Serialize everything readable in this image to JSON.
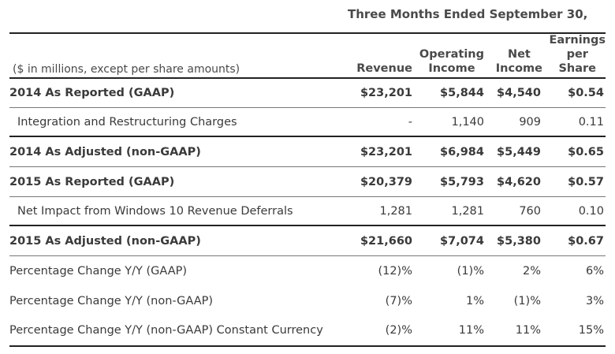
{
  "table": {
    "period_header": "Three Months Ended September 30,",
    "note": "($ in millions, except per share amounts)",
    "columns": {
      "revenue": "Revenue",
      "operating_income": "Operating\nIncome",
      "net_income": "Net\nIncome",
      "eps": "Earnings\nper\nShare"
    },
    "rows": [
      {
        "label": "2014 As Reported (GAAP)",
        "revenue": "$23,201",
        "operating_income": "$5,844",
        "net_income": "$4,540",
        "eps": "$0.54"
      },
      {
        "label": "Integration and Restructuring Charges",
        "revenue": "-",
        "operating_income": "1,140",
        "net_income": "909",
        "eps": "0.11"
      },
      {
        "label": "2014 As Adjusted (non-GAAP)",
        "revenue": "$23,201",
        "operating_income": "$6,984",
        "net_income": "$5,449",
        "eps": "$0.65"
      },
      {
        "label": "2015 As Reported (GAAP)",
        "revenue": "$20,379",
        "operating_income": "$5,793",
        "net_income": "$4,620",
        "eps": "$0.57"
      },
      {
        "label": "Net Impact from Windows 10 Revenue Deferrals",
        "revenue": "1,281",
        "operating_income": "1,281",
        "net_income": "760",
        "eps": "0.10"
      },
      {
        "label": "2015 As Adjusted (non-GAAP)",
        "revenue": "$21,660",
        "operating_income": "$7,074",
        "net_income": "$5,380",
        "eps": "$0.67"
      },
      {
        "label": "Percentage Change Y/Y (GAAP)",
        "revenue": "(12)%",
        "operating_income": "(1)%",
        "net_income": "2%",
        "eps": "6%"
      },
      {
        "label": "Percentage Change Y/Y (non-GAAP)",
        "revenue": "(7)%",
        "operating_income": "1%",
        "net_income": "(1)%",
        "eps": "3%"
      },
      {
        "label": "Percentage Change Y/Y (non-GAAP) Constant Currency",
        "revenue": "(2)%",
        "operating_income": "11%",
        "net_income": "11%",
        "eps": "15%"
      }
    ]
  }
}
